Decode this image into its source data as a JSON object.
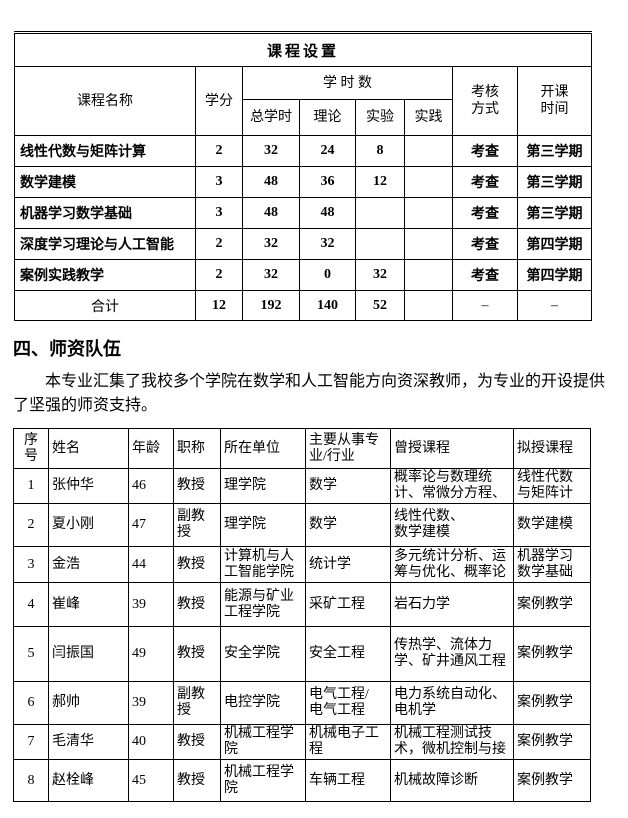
{
  "course_table": {
    "title": "课程设置",
    "headers": {
      "course_name": "课程名称",
      "credits": "学分",
      "hours_group": "学 时 数",
      "total_hours": "总学时",
      "theory": "理论",
      "experiment": "实验",
      "practice": "实践",
      "assessment": "考核\n方式",
      "start_time": "开课\n时间"
    },
    "rows": [
      [
        "线性代数与矩阵计算",
        "2",
        "32",
        "24",
        "8",
        "",
        "考查",
        "第三学期"
      ],
      [
        "数学建模",
        "3",
        "48",
        "36",
        "12",
        "",
        "考查",
        "第三学期"
      ],
      [
        "机器学习数学基础",
        "3",
        "48",
        "48",
        "",
        "",
        "考查",
        "第三学期"
      ],
      [
        "深度学习理论与人工智能",
        "2",
        "32",
        "32",
        "",
        "",
        "考查",
        "第四学期"
      ],
      [
        "案例实践教学",
        "2",
        "32",
        "0",
        "32",
        "",
        "考查",
        "第四学期"
      ]
    ],
    "total_row": [
      "合计",
      "12",
      "192",
      "140",
      "52",
      "",
      "–",
      "–"
    ]
  },
  "section": {
    "heading": "四、师资队伍",
    "paragraph": "本专业汇集了我校多个学院在数学和人工智能方向资深教师，为专业的开设提供了坚强的师资支持。"
  },
  "faculty_table": {
    "headers": [
      "序\n号",
      "姓名",
      "年龄",
      "职称",
      "所在单位",
      "主要从事专\n业/行业",
      "曾授课程",
      "拟授课程"
    ],
    "rows": [
      [
        "1",
        "张仲华",
        "46",
        "教授",
        "理学院",
        "数学",
        "概率论与数理统\n计、常微分方程、",
        "线性代数\n与矩阵计"
      ],
      [
        "2",
        "夏小刚",
        "47",
        "副教授",
        "理学院",
        "数学",
        "线性代数、\n数学建模",
        "数学建模"
      ],
      [
        "3",
        "金浩",
        "44",
        "教授",
        "计算机与人\n工智能学院",
        "统计学",
        "多元统计分析、运\n筹与优化、概率论",
        "机器学习\n数学基础"
      ],
      [
        "4",
        "崔峰",
        "39",
        "教授",
        "能源与矿业\n工程学院",
        "采矿工程",
        "岩石力学",
        "案例教学"
      ],
      [
        "5",
        "闫振国",
        "49",
        "教授",
        "安全学院",
        "安全工程",
        "传热学、流体力\n学、矿井通风工程",
        "案例教学"
      ],
      [
        "6",
        "郝帅",
        "39",
        "副教授",
        "电控学院",
        "电气工程/\n电气工程",
        "电力系统自动化、\n电机学",
        "案例教学"
      ],
      [
        "7",
        "毛清华",
        "40",
        "教授",
        "机械工程学\n院",
        "机械电子工\n程",
        "机械工程测试技\n术，微机控制与接",
        "案例教学"
      ],
      [
        "8",
        "赵栓峰",
        "45",
        "教授",
        "机械工程学\n院",
        "车辆工程",
        "机械故障诊断",
        "案例教学"
      ]
    ]
  }
}
